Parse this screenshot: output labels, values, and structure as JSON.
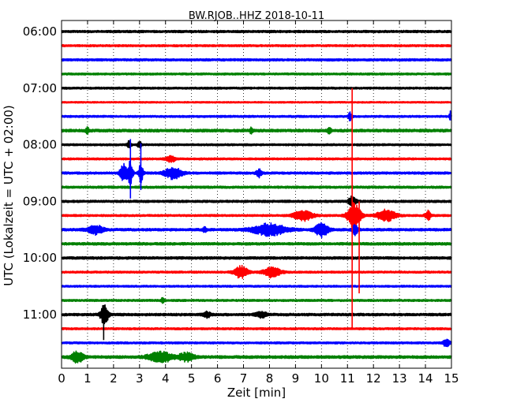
{
  "chart_data": {
    "type": "line",
    "title": "BW.RJOB..HHZ 2018-10-11",
    "xlabel": "Zeit  [min]",
    "ylabel": "UTC (Lokalzeit = UTC + 02:00)",
    "xlim": [
      0,
      15
    ],
    "x_ticks": [
      "0",
      "1",
      "2",
      "3",
      "4",
      "5",
      "6",
      "7",
      "8",
      "9",
      "10",
      "11",
      "12",
      "13",
      "14",
      "15"
    ],
    "y_ticks": [
      "06:00",
      "07:00",
      "08:00",
      "09:00",
      "10:00",
      "11:00"
    ],
    "grid": "vertical dotted",
    "trace_interval_minutes": 15,
    "trace_colors": [
      "#000000",
      "#ff0000",
      "#0000ff",
      "#008000"
    ],
    "traces": [
      {
        "start": "06:00",
        "color": "#000000",
        "amp": 0.18,
        "events": []
      },
      {
        "start": "06:15",
        "color": "#ff0000",
        "amp": 0.16,
        "events": []
      },
      {
        "start": "06:30",
        "color": "#0000ff",
        "amp": 0.18,
        "events": []
      },
      {
        "start": "06:45",
        "color": "#008000",
        "amp": 0.16,
        "events": []
      },
      {
        "start": "07:00",
        "color": "#000000",
        "amp": 0.16,
        "events": []
      },
      {
        "start": "07:15",
        "color": "#ff0000",
        "amp": 0.12,
        "events": []
      },
      {
        "start": "07:30",
        "color": "#0000ff",
        "amp": 0.16,
        "events": [
          {
            "t": 11.1,
            "a": 0.6,
            "w": 0.1
          },
          {
            "t": 14.95,
            "a": 0.8,
            "w": 0.05
          }
        ]
      },
      {
        "start": "07:45",
        "color": "#008000",
        "amp": 0.22,
        "events": [
          {
            "t": 1.0,
            "a": 0.4,
            "w": 0.1
          },
          {
            "t": 7.3,
            "a": 0.4,
            "w": 0.1
          },
          {
            "t": 10.3,
            "a": 0.4,
            "w": 0.1
          }
        ]
      },
      {
        "start": "08:00",
        "color": "#000000",
        "amp": 0.16,
        "events": [
          {
            "t": 2.6,
            "a": 0.6,
            "w": 0.1
          },
          {
            "t": 3.0,
            "a": 0.5,
            "w": 0.1
          }
        ]
      },
      {
        "start": "08:15",
        "color": "#ff0000",
        "amp": 0.16,
        "events": [
          {
            "t": 4.2,
            "a": 0.5,
            "w": 0.25
          }
        ]
      },
      {
        "start": "08:30",
        "color": "#0000ff",
        "amp": 0.18,
        "events": [
          {
            "t": 2.4,
            "a": 1.5,
            "w": 0.2
          },
          {
            "t": 2.65,
            "a": 1.9,
            "w": 0.12
          },
          {
            "t": 3.05,
            "a": 1.4,
            "w": 0.12
          },
          {
            "t": 4.3,
            "a": 0.9,
            "w": 0.45
          },
          {
            "t": 7.6,
            "a": 0.6,
            "w": 0.15
          }
        ]
      },
      {
        "start": "08:45",
        "color": "#008000",
        "amp": 0.18,
        "events": []
      },
      {
        "start": "09:00",
        "color": "#000000",
        "amp": 0.18,
        "events": [
          {
            "t": 11.2,
            "a": 0.9,
            "w": 0.2
          }
        ]
      },
      {
        "start": "09:15",
        "color": "#ff0000",
        "amp": 0.16,
        "events": [
          {
            "t": 9.3,
            "a": 0.8,
            "w": 0.5
          },
          {
            "t": 11.25,
            "a": 2.0,
            "w": 0.35
          },
          {
            "t": 12.5,
            "a": 0.9,
            "w": 0.5
          },
          {
            "t": 14.1,
            "a": 0.7,
            "w": 0.15
          }
        ]
      },
      {
        "start": "09:30",
        "color": "#0000ff",
        "amp": 0.2,
        "events": [
          {
            "t": 1.3,
            "a": 0.7,
            "w": 0.4
          },
          {
            "t": 8.0,
            "a": 0.9,
            "w": 0.9
          },
          {
            "t": 10.0,
            "a": 1.1,
            "w": 0.35
          },
          {
            "t": 11.3,
            "a": 0.8,
            "w": 0.15
          },
          {
            "t": 5.5,
            "a": 0.4,
            "w": 0.1
          }
        ]
      },
      {
        "start": "09:45",
        "color": "#008000",
        "amp": 0.2,
        "events": []
      },
      {
        "start": "10:00",
        "color": "#000000",
        "amp": 0.2,
        "events": []
      },
      {
        "start": "10:15",
        "color": "#ff0000",
        "amp": 0.16,
        "events": [
          {
            "t": 6.9,
            "a": 1.0,
            "w": 0.35
          },
          {
            "t": 8.1,
            "a": 0.8,
            "w": 0.45
          }
        ]
      },
      {
        "start": "10:30",
        "color": "#0000ff",
        "amp": 0.15,
        "events": []
      },
      {
        "start": "10:45",
        "color": "#008000",
        "amp": 0.16,
        "events": [
          {
            "t": 3.9,
            "a": 0.4,
            "w": 0.1
          }
        ]
      },
      {
        "start": "11:00",
        "color": "#000000",
        "amp": 0.2,
        "events": [
          {
            "t": 1.65,
            "a": 1.6,
            "w": 0.2
          },
          {
            "t": 5.6,
            "a": 0.4,
            "w": 0.2
          },
          {
            "t": 7.7,
            "a": 0.4,
            "w": 0.3
          }
        ]
      },
      {
        "start": "11:15",
        "color": "#ff0000",
        "amp": 0.16,
        "events": []
      },
      {
        "start": "11:30",
        "color": "#0000ff",
        "amp": 0.16,
        "events": [
          {
            "t": 14.8,
            "a": 0.5,
            "w": 0.2
          }
        ]
      },
      {
        "start": "11:45",
        "color": "#008000",
        "amp": 0.22,
        "events": [
          {
            "t": 0.6,
            "a": 0.9,
            "w": 0.3
          },
          {
            "t": 3.8,
            "a": 0.9,
            "w": 0.6
          },
          {
            "t": 4.8,
            "a": 0.6,
            "w": 0.4
          }
        ]
      }
    ]
  }
}
